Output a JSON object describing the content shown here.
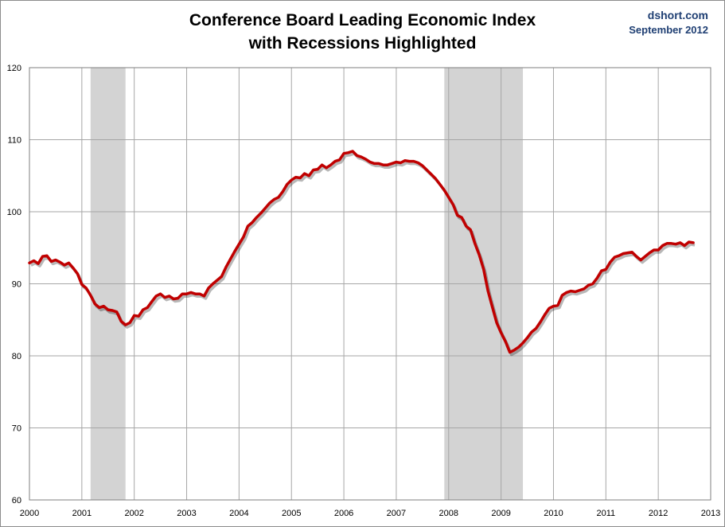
{
  "header": {
    "title_line1": "Conference Board Leading Economic Index",
    "title_line2": "with Recessions Highlighted",
    "source": "dshort.com",
    "date": "September 2012"
  },
  "colors": {
    "line": "#c00000",
    "recession": "#d3d3d3",
    "grid": "#a6a6a6",
    "credit": "#1f3f73"
  },
  "chart_data": {
    "type": "line",
    "title": "Conference Board Leading Economic Index with Recessions Highlighted",
    "xlabel": "",
    "ylabel": "",
    "xlim": [
      2000,
      2013
    ],
    "ylim": [
      60,
      120
    ],
    "x_ticks": [
      "2000",
      "2001",
      "2002",
      "2003",
      "2004",
      "2005",
      "2006",
      "2007",
      "2008",
      "2009",
      "2010",
      "2011",
      "2012",
      "2013"
    ],
    "y_ticks": [
      "60",
      "70",
      "80",
      "90",
      "100",
      "110",
      "120"
    ],
    "grid": true,
    "recessions": [
      {
        "start": "2001-03",
        "end": "2001-11"
      },
      {
        "start": "2007-12",
        "end": "2009-06"
      }
    ],
    "series": [
      {
        "x": [
          "2000-01",
          "2000-02",
          "2000-03",
          "2000-04",
          "2000-05",
          "2000-06",
          "2000-07",
          "2000-08",
          "2000-09",
          "2000-10",
          "2000-11",
          "2000-12",
          "2001-01",
          "2001-02",
          "2001-03",
          "2001-04",
          "2001-05",
          "2001-06",
          "2001-07",
          "2001-08",
          "2001-09",
          "2001-10",
          "2001-11",
          "2001-12",
          "2002-01",
          "2002-02",
          "2002-03",
          "2002-04",
          "2002-05",
          "2002-06",
          "2002-07",
          "2002-08",
          "2002-09",
          "2002-10",
          "2002-11",
          "2002-12",
          "2003-01",
          "2003-02",
          "2003-03",
          "2003-04",
          "2003-05",
          "2003-06",
          "2003-07",
          "2003-08",
          "2003-09",
          "2003-10",
          "2003-11",
          "2003-12",
          "2004-01",
          "2004-02",
          "2004-03",
          "2004-04",
          "2004-05",
          "2004-06",
          "2004-07",
          "2004-08",
          "2004-09",
          "2004-10",
          "2004-11",
          "2004-12",
          "2005-01",
          "2005-02",
          "2005-03",
          "2005-04",
          "2005-05",
          "2005-06",
          "2005-07",
          "2005-08",
          "2005-09",
          "2005-10",
          "2005-11",
          "2005-12",
          "2006-01",
          "2006-02",
          "2006-03",
          "2006-04",
          "2006-05",
          "2006-06",
          "2006-07",
          "2006-08",
          "2006-09",
          "2006-10",
          "2006-11",
          "2006-12",
          "2007-01",
          "2007-02",
          "2007-03",
          "2007-04",
          "2007-05",
          "2007-06",
          "2007-07",
          "2007-08",
          "2007-09",
          "2007-10",
          "2007-11",
          "2007-12",
          "2008-01",
          "2008-02",
          "2008-03",
          "2008-04",
          "2008-05",
          "2008-06",
          "2008-07",
          "2008-08",
          "2008-09",
          "2008-10",
          "2008-11",
          "2008-12",
          "2009-01",
          "2009-02",
          "2009-03",
          "2009-04",
          "2009-05",
          "2009-06",
          "2009-07",
          "2009-08",
          "2009-09",
          "2009-10",
          "2009-11",
          "2009-12",
          "2010-01",
          "2010-02",
          "2010-03",
          "2010-04",
          "2010-05",
          "2010-06",
          "2010-07",
          "2010-08",
          "2010-09",
          "2010-10",
          "2010-11",
          "2010-12",
          "2011-01",
          "2011-02",
          "2011-03",
          "2011-04",
          "2011-05",
          "2011-06",
          "2011-07",
          "2011-08",
          "2011-09",
          "2011-10",
          "2011-11",
          "2011-12",
          "2012-01",
          "2012-02",
          "2012-03",
          "2012-04",
          "2012-05",
          "2012-06",
          "2012-07",
          "2012-08",
          "2012-09"
        ],
        "values": [
          92.9,
          93.2,
          92.8,
          93.8,
          93.9,
          93.1,
          93.3,
          93.0,
          92.6,
          92.9,
          92.2,
          91.4,
          89.9,
          89.4,
          88.4,
          87.2,
          86.7,
          86.9,
          86.4,
          86.3,
          86.1,
          84.8,
          84.3,
          84.6,
          85.6,
          85.5,
          86.4,
          86.7,
          87.5,
          88.3,
          88.6,
          88.1,
          88.3,
          87.9,
          88.0,
          88.6,
          88.6,
          88.8,
          88.6,
          88.6,
          88.3,
          89.4,
          90.0,
          90.5,
          91.0,
          92.3,
          93.4,
          94.5,
          95.5,
          96.5,
          98.0,
          98.5,
          99.2,
          99.8,
          100.5,
          101.2,
          101.7,
          102.0,
          102.8,
          103.8,
          104.4,
          104.8,
          104.7,
          105.3,
          105.0,
          105.8,
          105.9,
          106.5,
          106.1,
          106.5,
          107.0,
          107.2,
          108.1,
          108.2,
          108.4,
          107.8,
          107.6,
          107.3,
          106.9,
          106.7,
          106.7,
          106.5,
          106.5,
          106.7,
          106.9,
          106.8,
          107.1,
          107.0,
          107.0,
          106.8,
          106.4,
          105.8,
          105.2,
          104.6,
          103.8,
          103.0,
          102.0,
          101.0,
          99.5,
          99.2,
          98.0,
          97.5,
          95.6,
          94.0,
          92.0,
          89.0,
          86.8,
          84.6,
          83.2,
          82.0,
          80.5,
          80.8,
          81.2,
          81.8,
          82.5,
          83.3,
          83.8,
          84.7,
          85.7,
          86.6,
          86.9,
          87.0,
          88.4,
          88.8,
          89.0,
          88.9,
          89.1,
          89.3,
          89.8,
          90.0,
          90.8,
          91.8,
          92.0,
          93.0,
          93.7,
          93.9,
          94.2,
          94.3,
          94.4,
          93.8,
          93.3,
          93.8,
          94.3,
          94.7,
          94.7,
          95.3,
          95.6,
          95.6,
          95.5,
          95.7,
          95.3,
          95.8,
          95.7
        ]
      }
    ]
  }
}
